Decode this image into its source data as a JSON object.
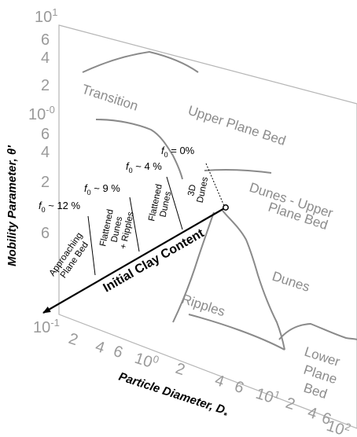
{
  "y_axis": {
    "title": "Mobility Parameter, θ′",
    "ticks": [
      {
        "text": "10",
        "sup": "1"
      },
      {
        "text": "6"
      },
      {
        "text": "4"
      },
      {
        "text": "2"
      },
      {
        "text": "10",
        "sup": "-0"
      },
      {
        "text": "6"
      },
      {
        "text": "4"
      },
      {
        "text": "2"
      },
      {
        "text": "6"
      },
      {
        "text": "10",
        "sup": "-1"
      }
    ]
  },
  "x_axis": {
    "title": "Particle Diameter, D",
    "title_sub": "*",
    "ticks": [
      {
        "text": "2"
      },
      {
        "text": "4"
      },
      {
        "text": "6"
      },
      {
        "text": "10",
        "sup": "0"
      },
      {
        "text": "2"
      },
      {
        "text": "4"
      },
      {
        "text": "6"
      },
      {
        "text": "10",
        "sup": "1"
      },
      {
        "text": "2"
      },
      {
        "text": "4"
      },
      {
        "text": "6"
      },
      {
        "text": "10",
        "sup": "2"
      }
    ]
  },
  "regions": {
    "transition": "Transition",
    "upper_plane_bed": "Upper Plane Bed",
    "dunes_upper_line1": "Dunes - Upper",
    "dunes_upper_line2": "Plane Bed",
    "dunes": "Dunes",
    "ripples": "Ripples",
    "lower_line1": "Lower",
    "lower_line2": "Plane",
    "lower_line3": "Bed"
  },
  "clay_axis": {
    "title": "Initial Clay Content",
    "fractions": [
      {
        "symbol": "f",
        "sub": "0",
        "value": " = 0%"
      },
      {
        "symbol": "f",
        "sub": "0",
        "value": " ~ 4 %"
      },
      {
        "symbol": "f",
        "sub": "0",
        "value": " ~ 9 %"
      },
      {
        "symbol": "f",
        "sub": "0",
        "value": " ~ 12 %"
      }
    ],
    "bands": [
      {
        "lines": [
          "3D",
          "Dunes"
        ]
      },
      {
        "lines": [
          "Flattened",
          "Dunes"
        ]
      },
      {
        "lines": [
          "Flattened",
          "Dunes",
          "+ Ripples"
        ]
      },
      {
        "lines": [
          "Approaching",
          "Plane Bed"
        ]
      }
    ]
  },
  "colors": {
    "axis_gray": "#9a9a9a",
    "boundary_gray": "#8a8a8a",
    "region_text": "#8c8c8c",
    "ink": "#000000"
  }
}
